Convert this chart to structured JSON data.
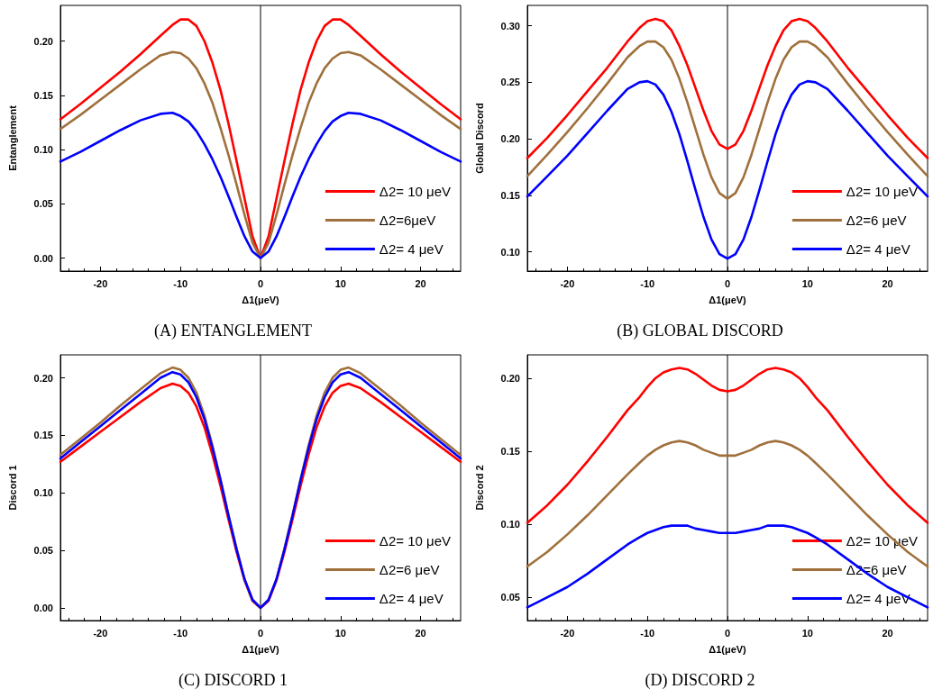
{
  "chart_data": [
    {
      "type": "line",
      "title": "(A) ENTANGLEMENT",
      "xlabel": "Δ1(μeV)",
      "ylabel": "Entanglement",
      "legend": "bottom right",
      "marker": "none",
      "line_style": "solid",
      "xlim": [
        -25,
        25
      ],
      "xticks": [
        -20,
        -10,
        0,
        10,
        20
      ],
      "ylim": [
        -0.012,
        0.233
      ],
      "yticks": [
        {
          "value": 0,
          "label": "0.00"
        },
        0.05,
        {
          "value": 0.1,
          "label": "0.10"
        },
        0.15,
        {
          "value": 0.2,
          "label": "0.20"
        }
      ],
      "ref_lines": [
        {
          "axis": "x",
          "value": 0,
          "color": "#000000"
        }
      ],
      "x": [
        -25,
        -22.5,
        -20,
        -17.5,
        -15,
        -12.5,
        -11,
        -10,
        -9,
        -8,
        -7,
        -6,
        -5,
        -4,
        -3,
        -2,
        -1,
        0,
        1,
        2,
        3,
        4,
        5,
        6,
        7,
        8,
        9,
        10,
        11,
        12.5,
        15,
        17.5,
        20,
        22.5,
        25
      ],
      "series": [
        {
          "name": "Δ2= 10 μeV",
          "color": "#ff0000",
          "values": [
            0.128,
            0.142,
            0.157,
            0.172,
            0.188,
            0.205,
            0.215,
            0.22,
            0.22,
            0.214,
            0.2,
            0.18,
            0.155,
            0.124,
            0.09,
            0.055,
            0.02,
            0,
            0.02,
            0.055,
            0.09,
            0.124,
            0.155,
            0.18,
            0.2,
            0.214,
            0.22,
            0.22,
            0.215,
            0.205,
            0.188,
            0.172,
            0.157,
            0.142,
            0.128
          ]
        },
        {
          "name": "Δ2=6μeV",
          "color": "#a0703c",
          "values": [
            0.119,
            0.132,
            0.146,
            0.16,
            0.174,
            0.187,
            0.19,
            0.189,
            0.184,
            0.175,
            0.161,
            0.143,
            0.12,
            0.095,
            0.068,
            0.04,
            0.014,
            0,
            0.014,
            0.04,
            0.068,
            0.095,
            0.12,
            0.143,
            0.161,
            0.175,
            0.184,
            0.189,
            0.19,
            0.187,
            0.174,
            0.16,
            0.146,
            0.132,
            0.119
          ]
        },
        {
          "name": "Δ2= 4 μeV",
          "color": "#0000ff",
          "values": [
            0.089,
            0.098,
            0.108,
            0.118,
            0.127,
            0.133,
            0.134,
            0.131,
            0.126,
            0.117,
            0.105,
            0.091,
            0.075,
            0.057,
            0.038,
            0.02,
            0.006,
            0,
            0.006,
            0.02,
            0.038,
            0.057,
            0.075,
            0.091,
            0.105,
            0.117,
            0.126,
            0.131,
            0.134,
            0.133,
            0.127,
            0.118,
            0.108,
            0.098,
            0.089
          ]
        }
      ]
    },
    {
      "type": "line",
      "title": "(B) GLOBAL DISCORD",
      "xlabel": "Δ1(μeV)",
      "ylabel": "Global Discord",
      "legend": "bottom right",
      "marker": "none",
      "line_style": "solid",
      "xlim": [
        -25,
        25
      ],
      "xticks": [
        -20,
        -10,
        0,
        10,
        20
      ],
      "ylim": [
        0.083,
        0.318
      ],
      "yticks": [
        {
          "value": 0.1,
          "label": "0.10"
        },
        0.15,
        {
          "value": 0.2,
          "label": "0.20"
        },
        0.25,
        {
          "value": 0.3,
          "label": "0.30"
        }
      ],
      "ref_lines": [
        {
          "axis": "x",
          "value": 0,
          "color": "#000000"
        }
      ],
      "x": [
        -25,
        -22.5,
        -20,
        -17.5,
        -15,
        -12.5,
        -11,
        -10,
        -9,
        -8,
        -7,
        -6,
        -5,
        -4,
        -3,
        -2,
        -1,
        0,
        1,
        2,
        3,
        4,
        5,
        6,
        7,
        8,
        9,
        10,
        11,
        12.5,
        15,
        17.5,
        20,
        22.5,
        25
      ],
      "series": [
        {
          "name": "Δ2= 10 μeV",
          "color": "#ff0000",
          "values": [
            0.183,
            0.201,
            0.221,
            0.242,
            0.263,
            0.286,
            0.298,
            0.304,
            0.306,
            0.304,
            0.296,
            0.282,
            0.265,
            0.245,
            0.225,
            0.207,
            0.195,
            0.191,
            0.195,
            0.207,
            0.225,
            0.245,
            0.265,
            0.282,
            0.296,
            0.304,
            0.306,
            0.304,
            0.298,
            0.286,
            0.263,
            0.242,
            0.221,
            0.201,
            0.183
          ]
        },
        {
          "name": "Δ2=6 μeV",
          "color": "#a0703c",
          "values": [
            0.167,
            0.186,
            0.206,
            0.227,
            0.249,
            0.272,
            0.282,
            0.286,
            0.286,
            0.281,
            0.27,
            0.253,
            0.232,
            0.209,
            0.186,
            0.166,
            0.152,
            0.147,
            0.152,
            0.166,
            0.186,
            0.209,
            0.232,
            0.253,
            0.27,
            0.281,
            0.286,
            0.286,
            0.282,
            0.272,
            0.249,
            0.227,
            0.206,
            0.186,
            0.167
          ]
        },
        {
          "name": "Δ2= 4 μeV",
          "color": "#0000ff",
          "values": [
            0.149,
            0.167,
            0.185,
            0.205,
            0.225,
            0.244,
            0.25,
            0.251,
            0.248,
            0.239,
            0.224,
            0.204,
            0.18,
            0.155,
            0.131,
            0.111,
            0.098,
            0.094,
            0.098,
            0.111,
            0.131,
            0.155,
            0.18,
            0.204,
            0.224,
            0.239,
            0.248,
            0.251,
            0.25,
            0.244,
            0.225,
            0.205,
            0.185,
            0.167,
            0.149
          ]
        }
      ]
    },
    {
      "type": "line",
      "title": "(C) DISCORD 1",
      "xlabel": "Δ1(μeV)",
      "ylabel": "Discord 1",
      "legend": "bottom right",
      "marker": "none",
      "line_style": "solid",
      "xlim": [
        -25,
        25
      ],
      "xticks": [
        -20,
        -10,
        0,
        10,
        20
      ],
      "ylim": [
        -0.011,
        0.22
      ],
      "yticks": [
        {
          "value": 0,
          "label": "0.00"
        },
        0.05,
        {
          "value": 0.1,
          "label": "0.10"
        },
        0.15,
        {
          "value": 0.2,
          "label": "0.20"
        }
      ],
      "ref_lines": [
        {
          "axis": "x",
          "value": 0,
          "color": "#000000"
        }
      ],
      "x": [
        -25,
        -22.5,
        -20,
        -17.5,
        -15,
        -12.5,
        -11,
        -10,
        -9,
        -8,
        -7,
        -6,
        -5,
        -4,
        -3,
        -2,
        -1,
        0,
        1,
        2,
        3,
        4,
        5,
        6,
        7,
        8,
        9,
        10,
        11,
        12.5,
        15,
        17.5,
        20,
        22.5,
        25
      ],
      "series": [
        {
          "name": "Δ2= 10 μeV",
          "color": "#ff0000",
          "values": [
            0.127,
            0.14,
            0.153,
            0.166,
            0.179,
            0.191,
            0.195,
            0.193,
            0.187,
            0.175,
            0.157,
            0.133,
            0.106,
            0.077,
            0.049,
            0.024,
            0.006,
            0,
            0.006,
            0.024,
            0.049,
            0.077,
            0.106,
            0.133,
            0.157,
            0.175,
            0.187,
            0.193,
            0.195,
            0.191,
            0.179,
            0.166,
            0.153,
            0.14,
            0.127
          ]
        },
        {
          "name": "Δ2=6 μeV",
          "color": "#a0703c",
          "values": [
            0.133,
            0.147,
            0.161,
            0.176,
            0.19,
            0.204,
            0.209,
            0.207,
            0.2,
            0.187,
            0.167,
            0.141,
            0.112,
            0.081,
            0.052,
            0.025,
            0.007,
            0,
            0.007,
            0.025,
            0.052,
            0.081,
            0.112,
            0.141,
            0.167,
            0.187,
            0.2,
            0.207,
            0.209,
            0.204,
            0.19,
            0.176,
            0.161,
            0.147,
            0.133
          ]
        },
        {
          "name": "Δ2= 4 μeV",
          "color": "#0000ff",
          "values": [
            0.13,
            0.144,
            0.158,
            0.172,
            0.186,
            0.2,
            0.205,
            0.203,
            0.196,
            0.183,
            0.164,
            0.139,
            0.111,
            0.08,
            0.051,
            0.025,
            0.007,
            0,
            0.007,
            0.025,
            0.051,
            0.08,
            0.111,
            0.139,
            0.164,
            0.183,
            0.196,
            0.203,
            0.205,
            0.2,
            0.186,
            0.172,
            0.158,
            0.144,
            0.13
          ]
        }
      ]
    },
    {
      "type": "line",
      "title": "(D) DISCORD 2",
      "xlabel": "Δ1(μeV)",
      "ylabel": "Discord 2",
      "legend": "bottom right",
      "marker": "none",
      "line_style": "solid",
      "xlim": [
        -25,
        25
      ],
      "xticks": [
        -20,
        -10,
        0,
        10,
        20
      ],
      "ylim": [
        0.034,
        0.216
      ],
      "yticks": [
        0.05,
        {
          "value": 0.1,
          "label": "0.10"
        },
        0.15,
        {
          "value": 0.2,
          "label": "0.20"
        }
      ],
      "ref_lines": [
        {
          "axis": "x",
          "value": 0,
          "color": "#000000"
        }
      ],
      "x": [
        -25,
        -22.5,
        -20,
        -17.5,
        -15,
        -12.5,
        -11,
        -10,
        -9,
        -8,
        -7,
        -6,
        -5,
        -4,
        -3,
        -2,
        -1,
        0,
        1,
        2,
        3,
        4,
        5,
        6,
        7,
        8,
        9,
        10,
        11,
        12.5,
        15,
        17.5,
        20,
        22.5,
        25
      ],
      "series": [
        {
          "name": "Δ2= 10 μeV",
          "color": "#ff0000",
          "values": [
            0.101,
            0.113,
            0.127,
            0.143,
            0.16,
            0.178,
            0.187,
            0.194,
            0.2,
            0.204,
            0.206,
            0.207,
            0.206,
            0.203,
            0.199,
            0.195,
            0.192,
            0.191,
            0.192,
            0.195,
            0.199,
            0.203,
            0.206,
            0.207,
            0.206,
            0.204,
            0.2,
            0.194,
            0.187,
            0.178,
            0.16,
            0.143,
            0.127,
            0.113,
            0.101
          ]
        },
        {
          "name": "Δ2=6 μeV",
          "color": "#a0703c",
          "values": [
            0.071,
            0.081,
            0.093,
            0.106,
            0.12,
            0.134,
            0.142,
            0.147,
            0.151,
            0.154,
            0.156,
            0.157,
            0.156,
            0.154,
            0.151,
            0.149,
            0.147,
            0.147,
            0.147,
            0.149,
            0.151,
            0.154,
            0.156,
            0.157,
            0.156,
            0.154,
            0.151,
            0.147,
            0.142,
            0.134,
            0.12,
            0.106,
            0.093,
            0.081,
            0.071
          ]
        },
        {
          "name": "Δ2= 4 μeV",
          "color": "#0000ff",
          "values": [
            0.043,
            0.05,
            0.057,
            0.066,
            0.076,
            0.086,
            0.091,
            0.094,
            0.096,
            0.098,
            0.099,
            0.099,
            0.099,
            0.097,
            0.096,
            0.095,
            0.094,
            0.094,
            0.094,
            0.095,
            0.096,
            0.097,
            0.099,
            0.099,
            0.099,
            0.098,
            0.096,
            0.094,
            0.091,
            0.086,
            0.076,
            0.066,
            0.057,
            0.05,
            0.043
          ]
        }
      ]
    }
  ]
}
